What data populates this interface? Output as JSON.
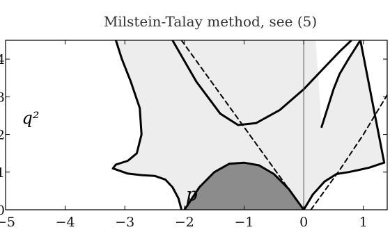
{
  "chart_data": {
    "type": "line",
    "title": "Milstein-Talay method, see (5)",
    "xlabel": "",
    "ylabel": "q²",
    "xlim": [
      -5,
      1.4
    ],
    "ylim": [
      0,
      4.5
    ],
    "x_ticks": [
      -5,
      -4,
      -3,
      -2,
      -1,
      0,
      1
    ],
    "x_tick_labels": [
      "−5",
      "−4",
      "−3",
      "−2",
      "−1",
      "0",
      "1"
    ],
    "y_ticks": [
      0,
      1,
      2,
      3,
      4
    ],
    "y_tick_labels": [
      "0",
      "1",
      "2",
      "3",
      "4"
    ],
    "annotations": [
      {
        "text": "p",
        "x": -1.88,
        "y": 0.25
      }
    ],
    "series": [
      {
        "role": "stability-region-left-boundary",
        "style": "solid",
        "fill": "#ededed",
        "x": [
          -2.05,
          -2.1,
          -2.2,
          -2.32,
          -2.5,
          -2.72,
          -2.95,
          -3.2,
          -3.15,
          -2.95,
          -2.8,
          -2.72,
          -2.75,
          -2.9,
          -3.05,
          -3.15
        ],
        "y": [
          0,
          0.3,
          0.6,
          0.8,
          0.9,
          0.92,
          0.96,
          1.1,
          1.2,
          1.3,
          1.5,
          2.0,
          2.7,
          3.4,
          4.0,
          4.5
        ]
      },
      {
        "role": "stability-region-right-boundary",
        "style": "solid",
        "fill": "#ededed",
        "x": [
          0,
          0.15,
          0.35,
          0.55,
          0.75,
          0.9,
          1.1,
          1.25,
          1.35,
          0.95,
          0.75,
          0.6,
          0.5,
          0.4,
          0.3
        ],
        "y": [
          0,
          0.4,
          0.75,
          0.95,
          1.0,
          1.05,
          1.12,
          1.2,
          1.25,
          4.5,
          4.0,
          3.6,
          3.2,
          2.7,
          2.2
        ]
      },
      {
        "role": "dark-region-boundary",
        "style": "solid",
        "fill": "#8c8c8c",
        "x": [
          -2,
          -1.75,
          -1.5,
          -1.25,
          -1,
          -0.75,
          -0.5,
          -0.25,
          0
        ],
        "y": [
          0,
          0.6,
          1.0,
          1.22,
          1.25,
          1.18,
          0.95,
          0.55,
          0
        ]
      },
      {
        "role": "upper-curve",
        "style": "solid",
        "x": [
          -2.2,
          -1.8,
          -1.4,
          -1.1,
          -0.8,
          -0.4,
          0,
          0.3,
          0.6,
          0.8
        ],
        "y": [
          4.5,
          3.4,
          2.55,
          2.25,
          2.3,
          2.65,
          3.2,
          3.7,
          4.2,
          4.5
        ]
      },
      {
        "role": "dashed-line-left",
        "style": "dashed",
        "x": [
          -2.05,
          0
        ],
        "y": [
          4.5,
          0
        ]
      },
      {
        "role": "dashed-line-right",
        "style": "dashed",
        "x": [
          0.12,
          0.6,
          1.0,
          1.4
        ],
        "y": [
          0,
          1.05,
          2.0,
          3.05
        ]
      }
    ]
  }
}
